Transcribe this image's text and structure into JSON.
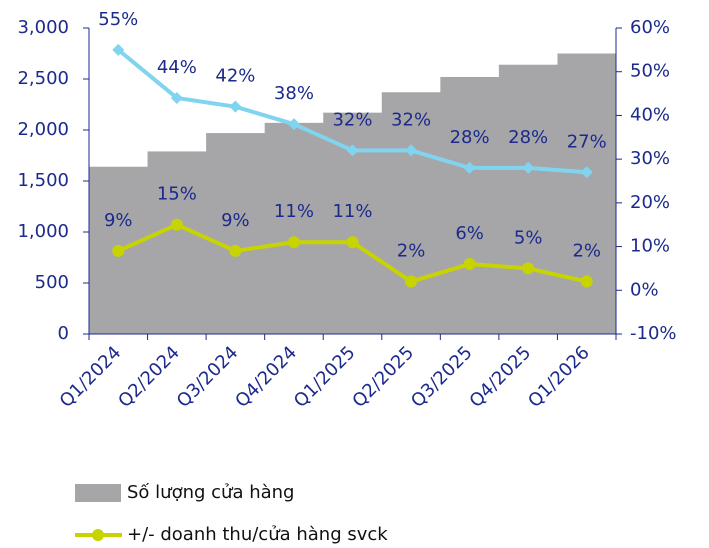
{
  "chart_data": {
    "type": "bar",
    "categories": [
      "Q1/2024",
      "Q2/2024",
      "Q3/2024",
      "Q4/2024",
      "Q1/2025",
      "Q2/2025",
      "Q3/2025",
      "Q4/2025",
      "Q1/2026"
    ],
    "series": [
      {
        "name": "Số lượng cửa hàng",
        "type": "bar",
        "color": "#a6a6a8",
        "values": [
          1640,
          1790,
          1970,
          2070,
          2170,
          2370,
          2520,
          2640,
          2750
        ]
      },
      {
        "type": "line",
        "axis": "y2",
        "color": "#80d4ef",
        "marker": "diamond",
        "values": [
          55,
          44,
          42,
          38,
          32,
          32,
          28,
          28,
          27
        ],
        "value_labels": [
          "55%",
          "44%",
          "42%",
          "38%",
          "32%",
          "32%",
          "28%",
          "28%",
          "27%"
        ]
      },
      {
        "name": "+/- doanh thu/cửa hàng svck",
        "type": "line",
        "axis": "y2",
        "color": "#c8d400",
        "marker": "circle",
        "values": [
          9,
          15,
          9,
          11,
          11,
          2,
          6,
          5,
          2
        ],
        "value_labels": [
          "9%",
          "15%",
          "9%",
          "11%",
          "11%",
          "2%",
          "6%",
          "5%",
          "2%"
        ]
      }
    ],
    "ylim": [
      0,
      3000
    ],
    "yticks": [
      0,
      500,
      {
        "value": 1000,
        "label": "1,000"
      },
      {
        "value": 1500,
        "label": "1,500"
      },
      {
        "value": 2000,
        "label": "2,000"
      },
      {
        "value": 2500,
        "label": "2,500"
      },
      {
        "value": 3000,
        "label": "3,000"
      }
    ],
    "y2lim": [
      -10,
      60
    ],
    "y2ticks": [
      {
        "value": -10,
        "label": "-10%"
      },
      {
        "value": 0,
        "label": "0%"
      },
      {
        "value": 10,
        "label": "10%"
      },
      {
        "value": 20,
        "label": "20%"
      },
      {
        "value": 30,
        "label": "30%"
      },
      {
        "value": 40,
        "label": "40%"
      },
      {
        "value": 50,
        "label": "50%"
      },
      {
        "value": 60,
        "label": "60%"
      }
    ],
    "legend": "bottom-left"
  }
}
